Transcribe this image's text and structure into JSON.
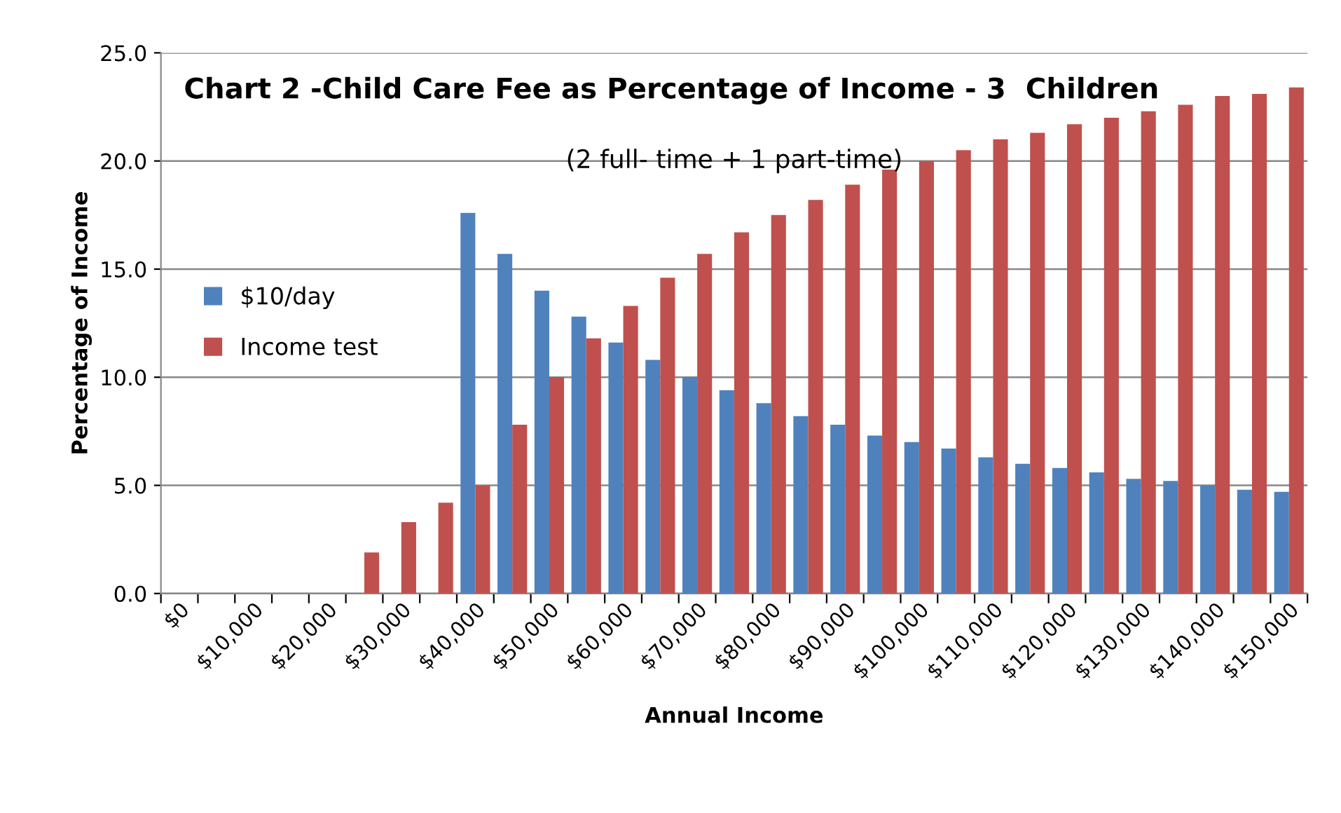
{
  "chart_data": {
    "type": "bar",
    "title": "Chart 2 -Child Care Fee as Percentage of Income - 3  Children",
    "subtitle": "(2 full- time + 1 part-time)",
    "xlabel": "Annual Income",
    "ylabel": "Percentage of Income",
    "categories": [
      "$0",
      null,
      "$10,000",
      null,
      "$20,000",
      null,
      "$30,000",
      null,
      "$40,000",
      null,
      "$50,000",
      null,
      "$60,000",
      null,
      "$70,000",
      null,
      "$80,000",
      null,
      "$90,000",
      null,
      "$100,000",
      null,
      "$110,000",
      null,
      "$120,000",
      null,
      "$130,000",
      null,
      "$140,000",
      null,
      "$150,000"
    ],
    "series": [
      {
        "name": "$10/day",
        "color": "#4f81bd",
        "values": [
          null,
          null,
          null,
          null,
          null,
          null,
          null,
          null,
          17.6,
          15.7,
          14.0,
          12.8,
          11.6,
          10.8,
          10.0,
          9.4,
          8.8,
          8.2,
          7.8,
          7.3,
          7.0,
          6.7,
          6.3,
          6.0,
          5.8,
          5.6,
          5.3,
          5.2,
          5.0,
          4.8,
          4.7
        ]
      },
      {
        "name": "Income test",
        "color": "#c0504d",
        "values": [
          null,
          null,
          null,
          null,
          null,
          1.9,
          3.3,
          4.2,
          5.0,
          7.8,
          10.0,
          11.8,
          13.3,
          14.6,
          15.7,
          16.7,
          17.5,
          18.2,
          18.9,
          19.6,
          20.0,
          20.5,
          21.0,
          21.3,
          21.7,
          22.0,
          22.3,
          22.6,
          23.0,
          23.1,
          23.4
        ]
      }
    ],
    "ylim": [
      0,
      25
    ],
    "yticks": [
      {
        "value": 0,
        "label": "0.0"
      },
      {
        "value": 5,
        "label": "5.0"
      },
      {
        "value": 10,
        "label": "10.0"
      },
      {
        "value": 15,
        "label": "15.0"
      },
      {
        "value": 20,
        "label": "20.0"
      },
      {
        "value": 25,
        "label": "25.0"
      }
    ],
    "grid": "y",
    "legend": "left"
  }
}
